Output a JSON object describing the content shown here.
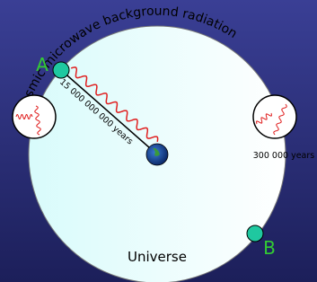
{
  "labels": {
    "arc": "cosmic microwave background radiation",
    "point_a": "A",
    "point_b": "B",
    "distance": "15 000 000 000 years",
    "age": "300 000 years",
    "universe": "Universe"
  }
}
